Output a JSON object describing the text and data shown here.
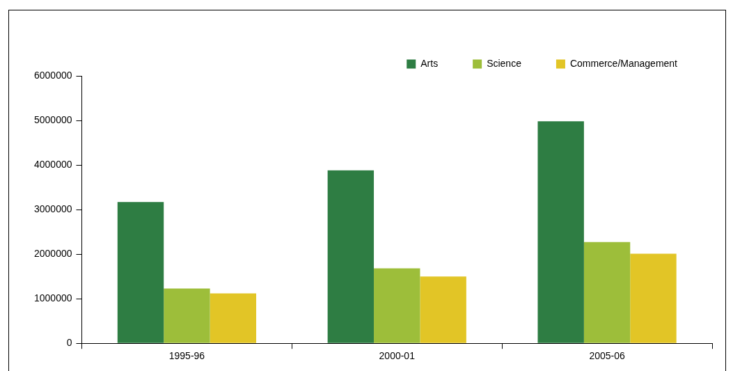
{
  "chart_data": {
    "type": "bar",
    "categories": [
      "1995-96",
      "2000-01",
      "2005-06"
    ],
    "series": [
      {
        "name": "Arts",
        "color": "#2e7d43",
        "values": [
          3170000,
          3880000,
          4980000
        ]
      },
      {
        "name": "Science",
        "color": "#9dbe3a",
        "values": [
          1230000,
          1680000,
          2270000
        ]
      },
      {
        "name": "Commerce/Management",
        "color": "#e2c526",
        "values": [
          1120000,
          1500000,
          2010000
        ]
      }
    ],
    "ylim": [
      0,
      6000000
    ],
    "yticks": [
      0,
      1000000,
      2000000,
      3000000,
      4000000,
      5000000,
      6000000
    ],
    "grid": false,
    "legend": "top right"
  }
}
